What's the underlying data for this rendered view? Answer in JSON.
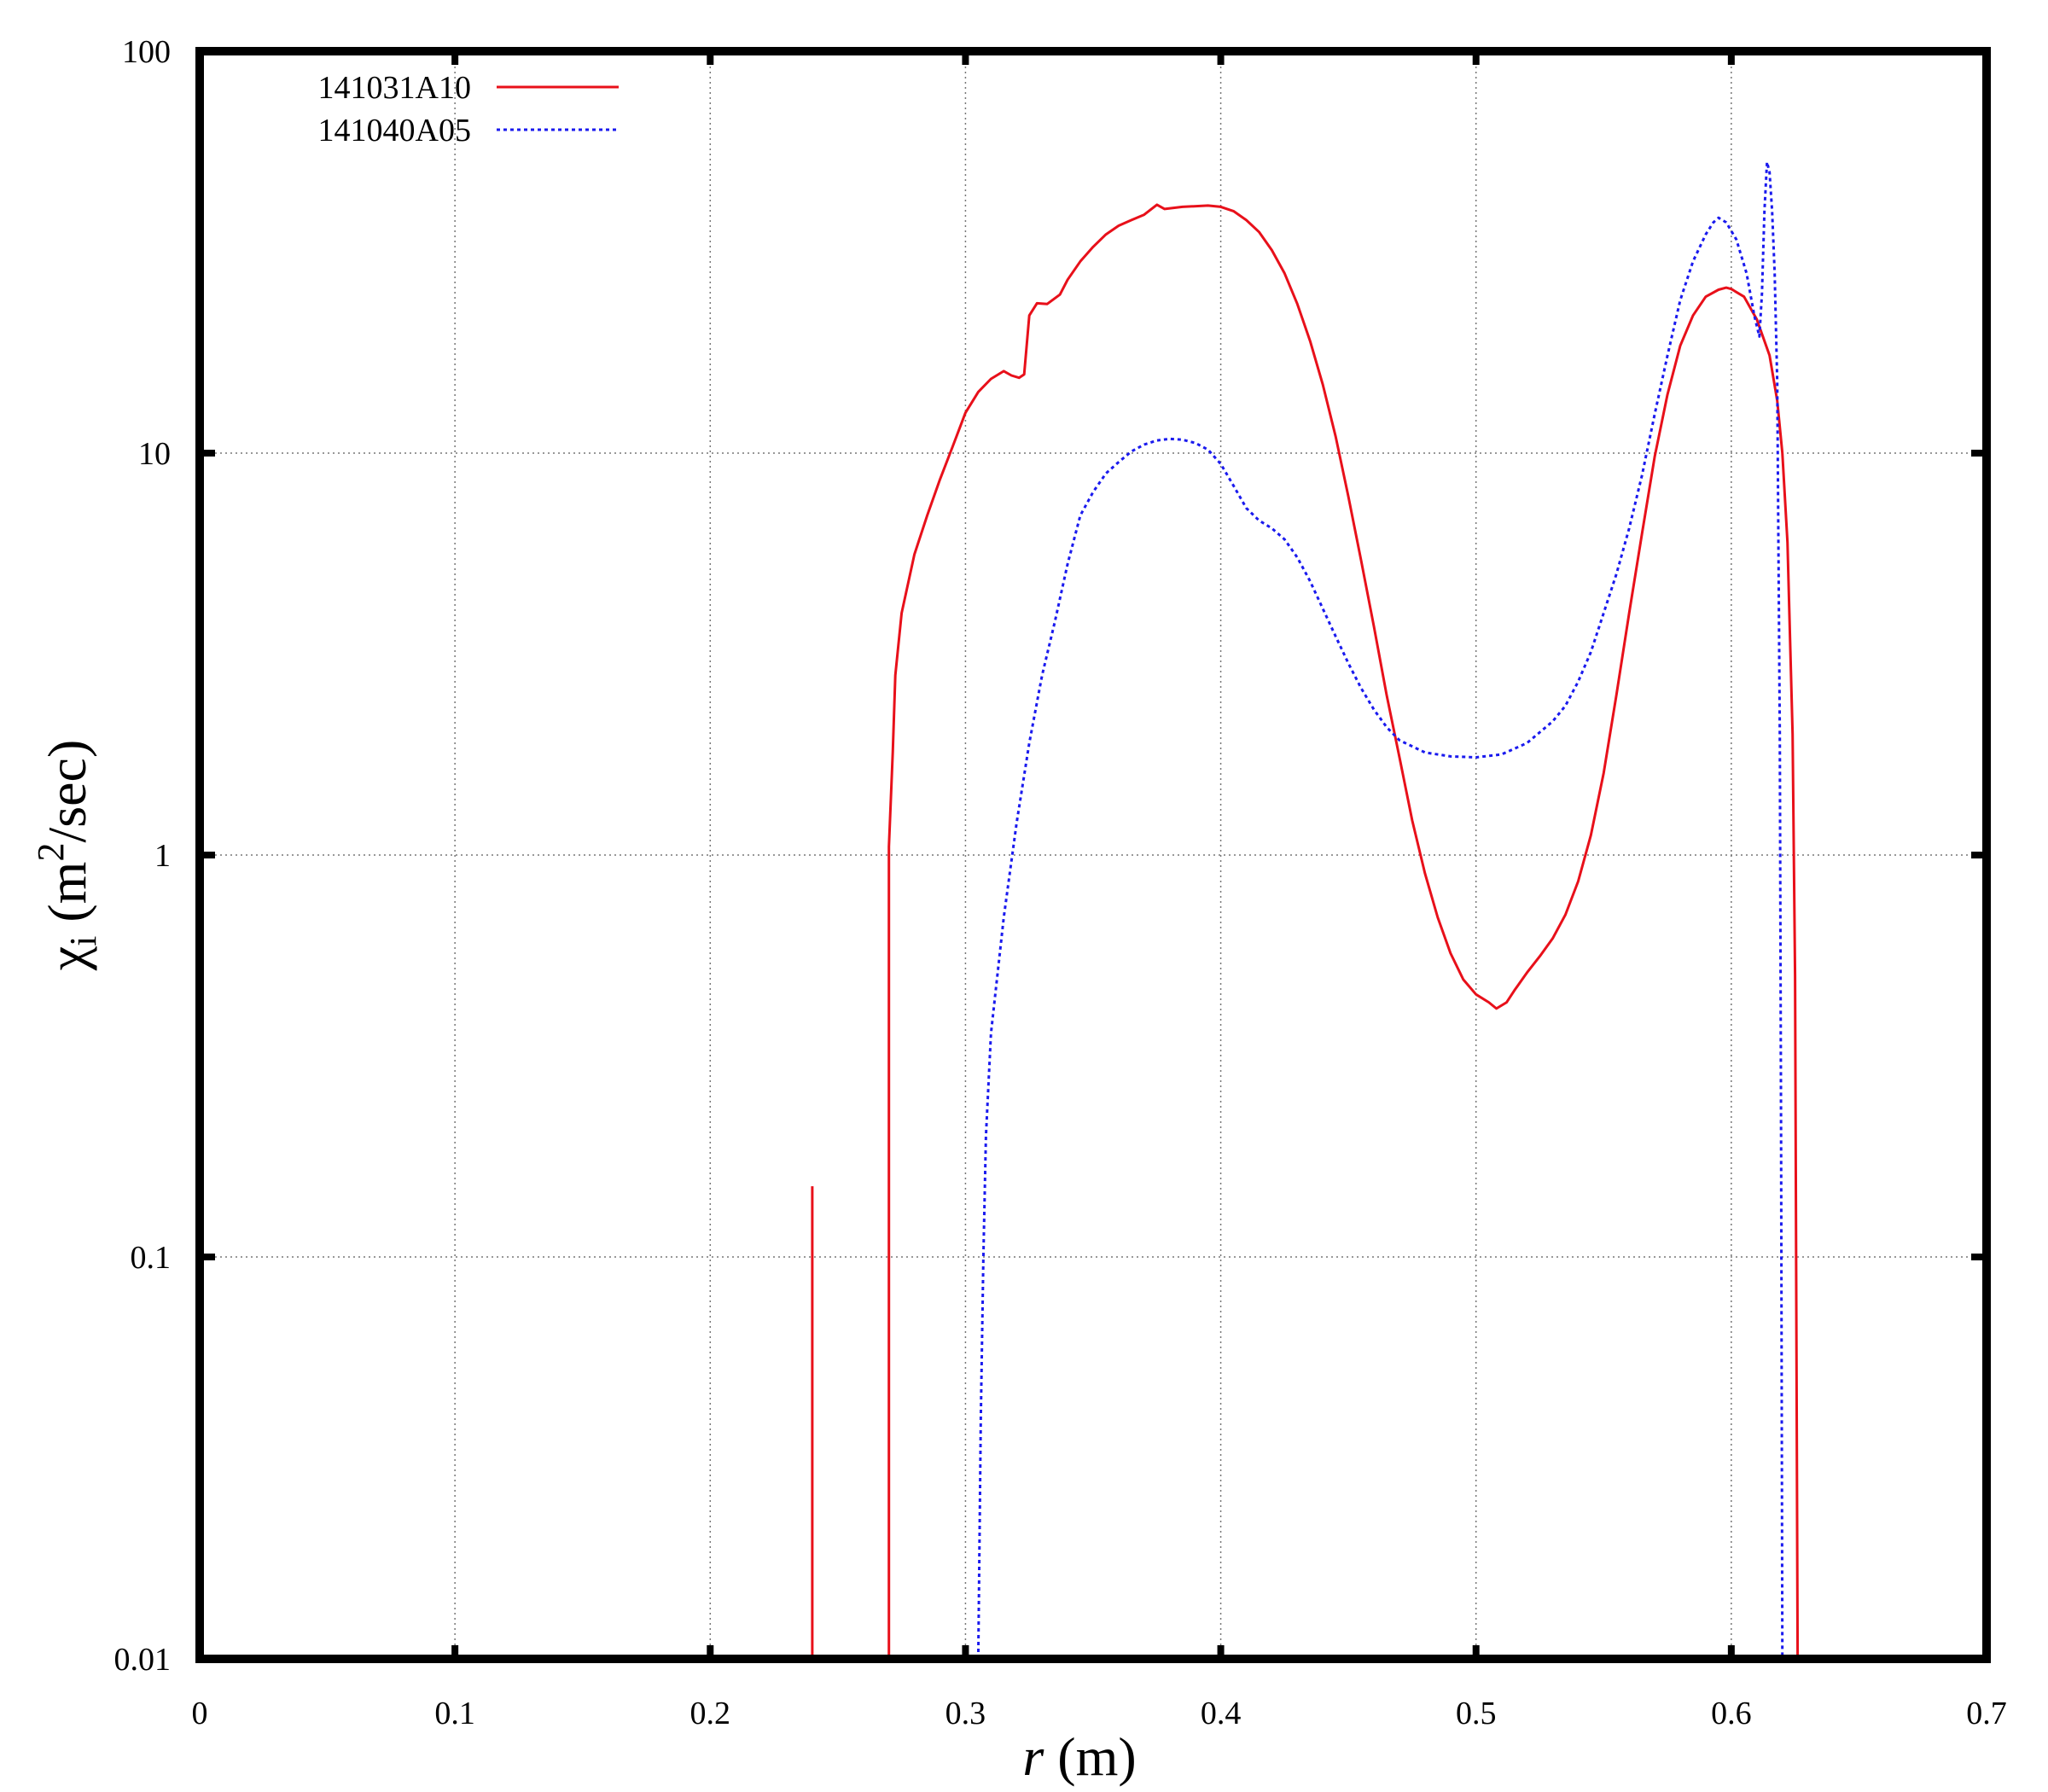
{
  "chart_data": {
    "type": "line",
    "xlabel": {
      "var": "r",
      "unit": " (m)"
    },
    "ylabel": {
      "sym": "χ",
      "sub": "i",
      "pre": " (m",
      "sup": "2",
      "post": "/sec)"
    },
    "xlim": [
      0,
      0.7
    ],
    "ylim": [
      0.01,
      100
    ],
    "yscale": "log",
    "grid": true,
    "legend_position": "top-left",
    "x_ticks": [
      "0",
      "0.1",
      "0.2",
      "0.3",
      "0.4",
      "0.5",
      "0.6",
      "0.7"
    ],
    "y_ticks": [
      "0.01",
      "0.1",
      "1",
      "10",
      "100"
    ],
    "series": [
      {
        "name": "141031A10",
        "color": "#e8101a",
        "style": "solid",
        "segments": [
          [
            [
              0.24,
              0.01
            ],
            [
              0.24,
              0.15
            ]
          ],
          [
            [
              0.27,
              0.01
            ],
            [
              0.27,
              1.05
            ],
            [
              0.2715,
              1.8
            ],
            [
              0.2725,
              2.8
            ],
            [
              0.275,
              4.0
            ],
            [
              0.28,
              5.6
            ],
            [
              0.285,
              7.0
            ],
            [
              0.29,
              8.6
            ],
            [
              0.295,
              10.4
            ],
            [
              0.3,
              12.6
            ],
            [
              0.305,
              14.2
            ],
            [
              0.31,
              15.3
            ],
            [
              0.315,
              16.0
            ],
            [
              0.318,
              15.6
            ],
            [
              0.321,
              15.4
            ],
            [
              0.323,
              15.7
            ],
            [
              0.325,
              22.0
            ],
            [
              0.328,
              23.6
            ],
            [
              0.332,
              23.5
            ],
            [
              0.337,
              24.8
            ],
            [
              0.34,
              27.0
            ],
            [
              0.345,
              30.0
            ],
            [
              0.35,
              32.6
            ],
            [
              0.355,
              35.0
            ],
            [
              0.36,
              36.8
            ],
            [
              0.365,
              38.0
            ],
            [
              0.37,
              39.2
            ],
            [
              0.375,
              41.5
            ],
            [
              0.378,
              40.5
            ],
            [
              0.385,
              41.0
            ],
            [
              0.395,
              41.3
            ],
            [
              0.4,
              41.0
            ],
            [
              0.405,
              40.0
            ],
            [
              0.41,
              38.0
            ],
            [
              0.415,
              35.5
            ],
            [
              0.42,
              32.0
            ],
            [
              0.425,
              28.0
            ],
            [
              0.43,
              23.5
            ],
            [
              0.435,
              19.0
            ],
            [
              0.44,
              14.8
            ],
            [
              0.445,
              11.0
            ],
            [
              0.45,
              7.8
            ],
            [
              0.455,
              5.4
            ],
            [
              0.46,
              3.7
            ],
            [
              0.465,
              2.5
            ],
            [
              0.47,
              1.75
            ],
            [
              0.475,
              1.22
            ],
            [
              0.48,
              0.9
            ],
            [
              0.485,
              0.7
            ],
            [
              0.49,
              0.57
            ],
            [
              0.495,
              0.49
            ],
            [
              0.5,
              0.45
            ],
            [
              0.505,
              0.43
            ],
            [
              0.508,
              0.415
            ],
            [
              0.512,
              0.43
            ],
            [
              0.515,
              0.46
            ],
            [
              0.52,
              0.51
            ],
            [
              0.525,
              0.56
            ],
            [
              0.53,
              0.62
            ],
            [
              0.535,
              0.71
            ],
            [
              0.54,
              0.86
            ],
            [
              0.545,
              1.12
            ],
            [
              0.55,
              1.6
            ],
            [
              0.555,
              2.5
            ],
            [
              0.56,
              4.0
            ],
            [
              0.565,
              6.3
            ],
            [
              0.57,
              9.8
            ],
            [
              0.575,
              14.0
            ],
            [
              0.58,
              18.5
            ],
            [
              0.585,
              22.0
            ],
            [
              0.59,
              24.5
            ],
            [
              0.595,
              25.5
            ],
            [
              0.598,
              25.8
            ],
            [
              0.6,
              25.6
            ],
            [
              0.605,
              24.5
            ],
            [
              0.61,
              21.5
            ],
            [
              0.615,
              17.5
            ],
            [
              0.618,
              13.5
            ],
            [
              0.62,
              10.0
            ],
            [
              0.622,
              6.0
            ],
            [
              0.624,
              2.0
            ],
            [
              0.625,
              0.5
            ],
            [
              0.626,
              0.01
            ]
          ]
        ]
      },
      {
        "name": "141040A05",
        "color": "#1a1aee",
        "style": "dotted",
        "segments": [
          [
            [
              0.305,
              0.01
            ],
            [
              0.3055,
              0.02
            ],
            [
              0.306,
              0.04
            ],
            [
              0.307,
              0.1
            ],
            [
              0.308,
              0.2
            ],
            [
              0.31,
              0.36
            ],
            [
              0.315,
              0.7
            ],
            [
              0.32,
              1.2
            ],
            [
              0.325,
              1.9
            ],
            [
              0.33,
              2.8
            ],
            [
              0.335,
              3.8
            ],
            [
              0.34,
              5.3
            ],
            [
              0.345,
              7.0
            ],
            [
              0.35,
              8.0
            ],
            [
              0.355,
              8.9
            ],
            [
              0.36,
              9.5
            ],
            [
              0.365,
              10.1
            ],
            [
              0.37,
              10.5
            ],
            [
              0.375,
              10.75
            ],
            [
              0.38,
              10.85
            ],
            [
              0.385,
              10.8
            ],
            [
              0.39,
              10.6
            ],
            [
              0.395,
              10.2
            ],
            [
              0.4,
              9.4
            ],
            [
              0.405,
              8.3
            ],
            [
              0.41,
              7.3
            ],
            [
              0.415,
              6.8
            ],
            [
              0.42,
              6.5
            ],
            [
              0.425,
              6.1
            ],
            [
              0.43,
              5.5
            ],
            [
              0.435,
              4.8
            ],
            [
              0.44,
              4.1
            ],
            [
              0.445,
              3.5
            ],
            [
              0.45,
              3.0
            ],
            [
              0.455,
              2.6
            ],
            [
              0.46,
              2.3
            ],
            [
              0.465,
              2.08
            ],
            [
              0.47,
              1.93
            ],
            [
              0.48,
              1.8
            ],
            [
              0.49,
              1.76
            ],
            [
              0.5,
              1.75
            ],
            [
              0.51,
              1.78
            ],
            [
              0.52,
              1.9
            ],
            [
              0.53,
              2.15
            ],
            [
              0.535,
              2.35
            ],
            [
              0.54,
              2.7
            ],
            [
              0.545,
              3.2
            ],
            [
              0.55,
              4.0
            ],
            [
              0.555,
              5.0
            ],
            [
              0.56,
              6.5
            ],
            [
              0.565,
              8.8
            ],
            [
              0.57,
              12.5
            ],
            [
              0.575,
              17.5
            ],
            [
              0.58,
              24.0
            ],
            [
              0.585,
              30.0
            ],
            [
              0.59,
              35.0
            ],
            [
              0.593,
              37.5
            ],
            [
              0.595,
              38.5
            ],
            [
              0.598,
              37.5
            ],
            [
              0.602,
              34.0
            ],
            [
              0.606,
              28.0
            ],
            [
              0.609,
              22.0
            ],
            [
              0.611,
              19.5
            ],
            [
              0.612,
              25.0
            ],
            [
              0.613,
              40.0
            ],
            [
              0.614,
              53.0
            ],
            [
              0.615,
              50.0
            ],
            [
              0.616,
              40.0
            ],
            [
              0.617,
              28.0
            ],
            [
              0.618,
              15.0
            ],
            [
              0.619,
              2.0
            ],
            [
              0.6195,
              0.2
            ],
            [
              0.62,
              0.01
            ]
          ]
        ]
      }
    ]
  }
}
